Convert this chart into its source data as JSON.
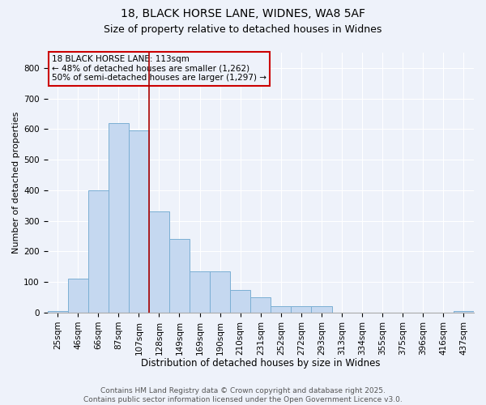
{
  "title1": "18, BLACK HORSE LANE, WIDNES, WA8 5AF",
  "title2": "Size of property relative to detached houses in Widnes",
  "xlabel": "Distribution of detached houses by size in Widnes",
  "ylabel": "Number of detached properties",
  "bar_color": "#c5d8f0",
  "bar_edge_color": "#7bafd4",
  "background_color": "#eef2fa",
  "vline_color": "#aa0000",
  "annotation_box_color": "#cc0000",
  "categories": [
    "25sqm",
    "46sqm",
    "66sqm",
    "87sqm",
    "107sqm",
    "128sqm",
    "149sqm",
    "169sqm",
    "190sqm",
    "210sqm",
    "231sqm",
    "252sqm",
    "272sqm",
    "293sqm",
    "313sqm",
    "334sqm",
    "355sqm",
    "375sqm",
    "396sqm",
    "416sqm",
    "437sqm"
  ],
  "values": [
    5,
    110,
    400,
    620,
    595,
    330,
    240,
    135,
    135,
    75,
    50,
    20,
    20,
    20,
    0,
    0,
    0,
    0,
    0,
    0,
    5
  ],
  "ylim": [
    0,
    850
  ],
  "yticks": [
    0,
    100,
    200,
    300,
    400,
    500,
    600,
    700,
    800
  ],
  "vline_x_index": 4,
  "annotation_text": "18 BLACK HORSE LANE: 113sqm\n← 48% of detached houses are smaller (1,262)\n50% of semi-detached houses are larger (1,297) →",
  "footer_text": "Contains HM Land Registry data © Crown copyright and database right 2025.\nContains public sector information licensed under the Open Government Licence v3.0.",
  "title1_fontsize": 10,
  "title2_fontsize": 9,
  "xlabel_fontsize": 8.5,
  "ylabel_fontsize": 8,
  "annotation_fontsize": 7.5,
  "tick_fontsize": 7.5,
  "footer_fontsize": 6.5
}
